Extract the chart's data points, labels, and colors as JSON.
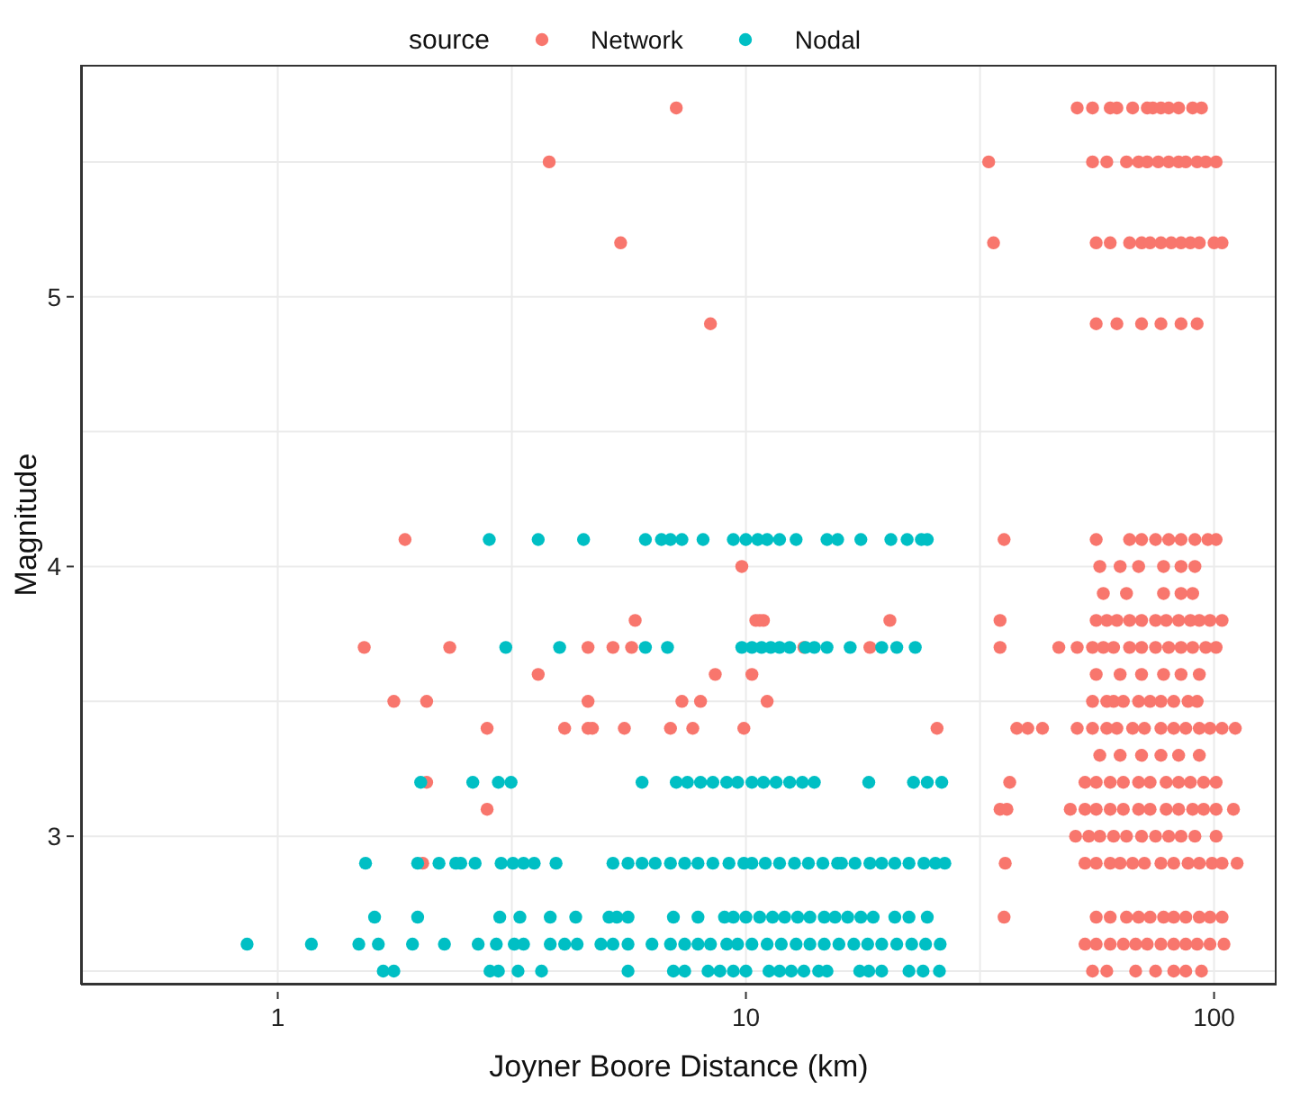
{
  "chart_data": {
    "type": "scatter",
    "xlabel": "Joyner Boore Distance (km)",
    "ylabel": "Magnitude",
    "legend_title": "source",
    "legend": "top",
    "grid": true,
    "marker": "circle",
    "log": "x",
    "xlim": [
      0.38,
      136
    ],
    "xticks": [
      1,
      {
        "value": 3.1623,
        "label": null
      },
      10,
      {
        "value": 31.623,
        "label": null
      },
      100
    ],
    "ylim": [
      2.45,
      5.86
    ],
    "yticks": [
      {
        "value": 2.5,
        "label": null
      },
      3,
      {
        "value": 3.5,
        "label": null
      },
      4,
      {
        "value": 4.5,
        "label": null
      },
      5,
      {
        "value": 5.5,
        "label": null
      }
    ],
    "series": [
      {
        "name": "Network",
        "color": "#f8766d",
        "x": [
          7.1,
          51,
          55,
          60,
          62,
          67,
          72,
          74,
          77,
          80,
          84,
          90,
          94,
          3.8,
          33,
          55,
          59,
          65,
          69,
          72,
          76,
          80,
          84,
          87,
          92,
          96,
          101,
          5.4,
          33.8,
          56,
          60,
          66,
          70,
          73,
          77,
          81,
          85,
          89,
          93,
          100,
          104,
          8.4,
          56,
          62,
          70,
          77,
          85,
          92,
          1.87,
          35.6,
          56,
          66,
          70,
          75,
          80,
          85,
          91,
          97,
          101,
          9.8,
          57,
          63,
          69,
          78,
          85,
          91,
          58,
          65,
          78,
          85,
          90,
          5.8,
          10.5,
          10.7,
          10.9,
          20.3,
          34.9,
          56,
          59,
          62,
          66,
          70,
          75,
          79,
          84,
          89,
          93,
          98,
          104,
          1.53,
          2.33,
          4.6,
          5.2,
          5.7,
          13.3,
          18.4,
          34.9,
          46.6,
          51,
          55,
          58,
          61,
          66,
          70,
          75,
          80,
          85,
          90,
          96,
          101,
          3.6,
          8.6,
          10.3,
          56,
          63,
          70,
          78,
          85,
          93,
          1.77,
          2.08,
          4.6,
          7.3,
          8.0,
          11.1,
          55,
          59,
          61,
          64,
          69,
          73,
          77,
          82,
          88,
          92,
          2.8,
          4.1,
          4.6,
          4.7,
          5.5,
          6.9,
          7.7,
          9.9,
          25.6,
          37.9,
          40,
          43,
          51,
          55,
          59,
          62,
          67,
          71,
          77,
          82,
          87,
          93,
          98,
          104,
          111,
          57,
          63,
          70,
          77,
          84,
          93,
          2.08,
          36.6,
          53,
          56,
          60,
          64,
          69,
          73,
          79,
          84,
          89,
          95,
          101,
          2.8,
          34.9,
          36.1,
          49.3,
          53,
          56,
          60,
          64,
          69,
          73,
          79,
          84,
          90,
          95,
          101,
          110,
          50.6,
          54,
          57,
          61,
          65,
          70,
          75,
          80,
          85,
          91,
          101,
          2.04,
          35.8,
          53,
          56,
          60,
          63,
          67,
          71,
          77,
          82,
          88,
          93,
          99,
          104,
          112,
          35.6,
          56,
          60,
          65,
          69,
          73,
          78,
          82,
          87,
          93,
          98,
          104,
          53,
          56,
          60,
          64,
          68,
          72,
          77,
          82,
          87,
          92,
          98,
          105,
          55,
          59,
          68,
          75,
          82,
          87,
          94
        ],
        "values": [
          5.7,
          5.7,
          5.7,
          5.7,
          5.7,
          5.7,
          5.7,
          5.7,
          5.7,
          5.7,
          5.7,
          5.7,
          5.7,
          5.5,
          5.5,
          5.5,
          5.5,
          5.5,
          5.5,
          5.5,
          5.5,
          5.5,
          5.5,
          5.5,
          5.5,
          5.5,
          5.5,
          5.2,
          5.2,
          5.2,
          5.2,
          5.2,
          5.2,
          5.2,
          5.2,
          5.2,
          5.2,
          5.2,
          5.2,
          5.2,
          5.2,
          4.9,
          4.9,
          4.9,
          4.9,
          4.9,
          4.9,
          4.9,
          4.1,
          4.1,
          4.1,
          4.1,
          4.1,
          4.1,
          4.1,
          4.1,
          4.1,
          4.1,
          4.1,
          4.0,
          4.0,
          4.0,
          4.0,
          4.0,
          4.0,
          4.0,
          3.9,
          3.9,
          3.9,
          3.9,
          3.9,
          3.8,
          3.8,
          3.8,
          3.8,
          3.8,
          3.8,
          3.8,
          3.8,
          3.8,
          3.8,
          3.8,
          3.8,
          3.8,
          3.8,
          3.8,
          3.8,
          3.8,
          3.8,
          3.7,
          3.7,
          3.7,
          3.7,
          3.7,
          3.7,
          3.7,
          3.7,
          3.7,
          3.7,
          3.7,
          3.7,
          3.7,
          3.7,
          3.7,
          3.7,
          3.7,
          3.7,
          3.7,
          3.7,
          3.7,
          3.6,
          3.6,
          3.6,
          3.6,
          3.6,
          3.6,
          3.6,
          3.6,
          3.6,
          3.5,
          3.5,
          3.5,
          3.5,
          3.5,
          3.5,
          3.5,
          3.5,
          3.5,
          3.5,
          3.5,
          3.5,
          3.5,
          3.5,
          3.5,
          3.5,
          3.4,
          3.4,
          3.4,
          3.4,
          3.4,
          3.4,
          3.4,
          3.4,
          3.4,
          3.4,
          3.4,
          3.4,
          3.4,
          3.4,
          3.4,
          3.4,
          3.4,
          3.4,
          3.4,
          3.4,
          3.4,
          3.4,
          3.4,
          3.4,
          3.4,
          3.3,
          3.3,
          3.3,
          3.3,
          3.3,
          3.3,
          3.2,
          3.2,
          3.2,
          3.2,
          3.2,
          3.2,
          3.2,
          3.2,
          3.2,
          3.2,
          3.2,
          3.2,
          3.2,
          3.1,
          3.1,
          3.1,
          3.1,
          3.1,
          3.1,
          3.1,
          3.1,
          3.1,
          3.1,
          3.1,
          3.1,
          3.1,
          3.1,
          3.1,
          3.1,
          3.0,
          3.0,
          3.0,
          3.0,
          3.0,
          3.0,
          3.0,
          3.0,
          3.0,
          3.0,
          3.0,
          2.9,
          2.9,
          2.9,
          2.9,
          2.9,
          2.9,
          2.9,
          2.9,
          2.9,
          2.9,
          2.9,
          2.9,
          2.9,
          2.9,
          2.9,
          2.7,
          2.7,
          2.7,
          2.7,
          2.7,
          2.7,
          2.7,
          2.7,
          2.7,
          2.7,
          2.7,
          2.7,
          2.6,
          2.6,
          2.6,
          2.6,
          2.6,
          2.6,
          2.6,
          2.6,
          2.6,
          2.6,
          2.6,
          2.6,
          2.5,
          2.5,
          2.5,
          2.5,
          2.5,
          2.5,
          2.5
        ]
      },
      {
        "name": "Nodal",
        "color": "#00bfc4",
        "x": [
          2.83,
          3.6,
          4.5,
          6.1,
          6.6,
          6.9,
          7.3,
          8.1,
          9.4,
          10,
          10.6,
          11.1,
          11.8,
          12.8,
          14.9,
          15.7,
          17.6,
          20.4,
          22.1,
          23.7,
          24.4,
          3.07,
          4.0,
          6.1,
          6.8,
          9.8,
          10.3,
          10.8,
          11.3,
          11.8,
          12.4,
          13.4,
          14,
          14.9,
          16.7,
          19.5,
          21,
          23,
          2.02,
          2.61,
          2.96,
          3.15,
          6.0,
          7.1,
          7.5,
          8.0,
          8.5,
          9.1,
          9.6,
          10.3,
          10.9,
          11.6,
          12.4,
          13.2,
          14.0,
          18.3,
          22.8,
          24.4,
          26.2,
          1.54,
          1.99,
          2.21,
          2.4,
          2.46,
          2.64,
          3.0,
          3.18,
          3.35,
          3.53,
          3.93,
          5.2,
          5.6,
          6.0,
          6.4,
          6.9,
          7.4,
          7.9,
          8.5,
          9.2,
          9.9,
          10.3,
          11.0,
          11.8,
          12.7,
          13.6,
          14.6,
          15.7,
          16.0,
          17.1,
          18.4,
          19.5,
          20.8,
          22.3,
          24,
          25.4,
          26.6,
          1.61,
          1.99,
          2.98,
          3.29,
          3.82,
          4.33,
          5.1,
          5.3,
          5.6,
          7.0,
          7.9,
          9.0,
          9.4,
          10,
          10.7,
          11.4,
          12.1,
          12.9,
          13.7,
          14.7,
          15.5,
          16.5,
          17.6,
          18.7,
          20.8,
          22.3,
          24.4,
          0.86,
          1.18,
          1.49,
          1.64,
          1.94,
          2.27,
          2.68,
          2.93,
          3.2,
          3.35,
          3.82,
          4.1,
          4.36,
          4.9,
          5.2,
          5.6,
          6.3,
          6.9,
          7.4,
          7.9,
          8.4,
          9.1,
          9.6,
          10.3,
          11.1,
          11.9,
          12.8,
          13.7,
          14.7,
          15.8,
          17.0,
          18.2,
          19.5,
          21,
          22.6,
          24.2,
          26,
          1.68,
          1.77,
          2.84,
          2.96,
          3.26,
          3.66,
          5.6,
          7.0,
          7.4,
          8.3,
          8.8,
          9.4,
          10,
          11.2,
          11.8,
          12.5,
          13.3,
          14.3,
          14.9,
          17.5,
          18.3,
          19.5,
          22.3,
          23.9,
          25.9
        ],
        "values": [
          4.1,
          4.1,
          4.1,
          4.1,
          4.1,
          4.1,
          4.1,
          4.1,
          4.1,
          4.1,
          4.1,
          4.1,
          4.1,
          4.1,
          4.1,
          4.1,
          4.1,
          4.1,
          4.1,
          4.1,
          4.1,
          3.7,
          3.7,
          3.7,
          3.7,
          3.7,
          3.7,
          3.7,
          3.7,
          3.7,
          3.7,
          3.7,
          3.7,
          3.7,
          3.7,
          3.7,
          3.7,
          3.7,
          3.2,
          3.2,
          3.2,
          3.2,
          3.2,
          3.2,
          3.2,
          3.2,
          3.2,
          3.2,
          3.2,
          3.2,
          3.2,
          3.2,
          3.2,
          3.2,
          3.2,
          3.2,
          3.2,
          3.2,
          3.2,
          2.9,
          2.9,
          2.9,
          2.9,
          2.9,
          2.9,
          2.9,
          2.9,
          2.9,
          2.9,
          2.9,
          2.9,
          2.9,
          2.9,
          2.9,
          2.9,
          2.9,
          2.9,
          2.9,
          2.9,
          2.9,
          2.9,
          2.9,
          2.9,
          2.9,
          2.9,
          2.9,
          2.9,
          2.9,
          2.9,
          2.9,
          2.9,
          2.9,
          2.9,
          2.9,
          2.9,
          2.9,
          2.7,
          2.7,
          2.7,
          2.7,
          2.7,
          2.7,
          2.7,
          2.7,
          2.7,
          2.7,
          2.7,
          2.7,
          2.7,
          2.7,
          2.7,
          2.7,
          2.7,
          2.7,
          2.7,
          2.7,
          2.7,
          2.7,
          2.7,
          2.7,
          2.7,
          2.7,
          2.7,
          2.6,
          2.6,
          2.6,
          2.6,
          2.6,
          2.6,
          2.6,
          2.6,
          2.6,
          2.6,
          2.6,
          2.6,
          2.6,
          2.6,
          2.6,
          2.6,
          2.6,
          2.6,
          2.6,
          2.6,
          2.6,
          2.6,
          2.6,
          2.6,
          2.6,
          2.6,
          2.6,
          2.6,
          2.6,
          2.6,
          2.6,
          2.6,
          2.6,
          2.6,
          2.6,
          2.6,
          2.6,
          2.5,
          2.5,
          2.5,
          2.5,
          2.5,
          2.5,
          2.5,
          2.5,
          2.5,
          2.5,
          2.5,
          2.5,
          2.5,
          2.5,
          2.5,
          2.5,
          2.5,
          2.5,
          2.5,
          2.5,
          2.5,
          2.5,
          2.5,
          2.5,
          2.5
        ]
      }
    ]
  }
}
